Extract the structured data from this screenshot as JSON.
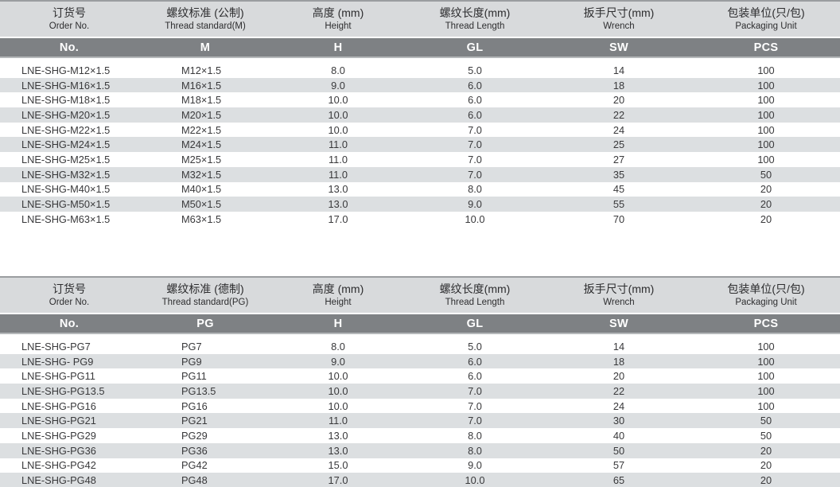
{
  "page": {
    "background": "#ffffff",
    "colors": {
      "top_border": "#9a9da0",
      "header_band_bg": "#d8dadc",
      "code_band_bg": "#7e8184",
      "code_band_text": "#ffffff",
      "stripe_row_bg": "#dcdfe1",
      "data_text": "#39393b"
    }
  },
  "tables": [
    {
      "name": "metric-thread-table",
      "columns": [
        {
          "key": "order_no",
          "zh": "订货号",
          "en": "Order No.",
          "code": "No."
        },
        {
          "key": "thread_standard",
          "zh": "螺纹标准 (公制)",
          "en": "Thread standard(M)",
          "code": "M"
        },
        {
          "key": "height",
          "zh": "高度 (mm)",
          "en": "Height",
          "code": "H"
        },
        {
          "key": "thread_length",
          "zh": "螺纹长度(mm)",
          "en": "Thread Length",
          "code": "GL"
        },
        {
          "key": "wrench",
          "zh": "扳手尺寸(mm)",
          "en": "Wrench",
          "code": "SW"
        },
        {
          "key": "packaging_unit",
          "zh": "包装单位(只/包)",
          "en": "Packaging Unit",
          "code": "PCS"
        }
      ],
      "rows": [
        [
          "LNE-SHG-M12×1.5",
          "M12×1.5",
          "8.0",
          "5.0",
          "14",
          "100"
        ],
        [
          "LNE-SHG-M16×1.5",
          "M16×1.5",
          "9.0",
          "6.0",
          "18",
          "100"
        ],
        [
          "LNE-SHG-M18×1.5",
          "M18×1.5",
          "10.0",
          "6.0",
          "20",
          "100"
        ],
        [
          "LNE-SHG-M20×1.5",
          "M20×1.5",
          "10.0",
          "6.0",
          "22",
          "100"
        ],
        [
          "LNE-SHG-M22×1.5",
          "M22×1.5",
          "10.0",
          "7.0",
          "24",
          "100"
        ],
        [
          "LNE-SHG-M24×1.5",
          "M24×1.5",
          "11.0",
          "7.0",
          "25",
          "100"
        ],
        [
          "LNE-SHG-M25×1.5",
          "M25×1.5",
          "11.0",
          "7.0",
          "27",
          "100"
        ],
        [
          "LNE-SHG-M32×1.5",
          "M32×1.5",
          "11.0",
          "7.0",
          "35",
          "50"
        ],
        [
          "LNE-SHG-M40×1.5",
          "M40×1.5",
          "13.0",
          "8.0",
          "45",
          "20"
        ],
        [
          "LNE-SHG-M50×1.5",
          "M50×1.5",
          "13.0",
          "9.0",
          "55",
          "20"
        ],
        [
          "LNE-SHG-M63×1.5",
          "M63×1.5",
          "17.0",
          "10.0",
          "70",
          "20"
        ]
      ]
    },
    {
      "name": "pg-thread-table",
      "columns": [
        {
          "key": "order_no",
          "zh": "订货号",
          "en": "Order No.",
          "code": "No."
        },
        {
          "key": "thread_standard",
          "zh": "螺纹标准 (德制)",
          "en": "Thread standard(PG)",
          "code": "PG"
        },
        {
          "key": "height",
          "zh": "高度 (mm)",
          "en": "Height",
          "code": "H"
        },
        {
          "key": "thread_length",
          "zh": "螺纹长度(mm)",
          "en": "Thread Length",
          "code": "GL"
        },
        {
          "key": "wrench",
          "zh": "扳手尺寸(mm)",
          "en": "Wrench",
          "code": "SW"
        },
        {
          "key": "packaging_unit",
          "zh": "包装单位(只/包)",
          "en": "Packaging Unit",
          "code": "PCS"
        }
      ],
      "rows": [
        [
          "LNE-SHG-PG7",
          "PG7",
          "8.0",
          "5.0",
          "14",
          "100"
        ],
        [
          "LNE-SHG- PG9",
          "PG9",
          "9.0",
          "6.0",
          "18",
          "100"
        ],
        [
          "LNE-SHG-PG11",
          "PG11",
          "10.0",
          "6.0",
          "20",
          "100"
        ],
        [
          "LNE-SHG-PG13.5",
          "PG13.5",
          "10.0",
          "7.0",
          "22",
          "100"
        ],
        [
          "LNE-SHG-PG16",
          "PG16",
          "10.0",
          "7.0",
          "24",
          "100"
        ],
        [
          "LNE-SHG-PG21",
          "PG21",
          "11.0",
          "7.0",
          "30",
          "50"
        ],
        [
          "LNE-SHG-PG29",
          "PG29",
          "13.0",
          "8.0",
          "40",
          "50"
        ],
        [
          "LNE-SHG-PG36",
          "PG36",
          "13.0",
          "8.0",
          "50",
          "20"
        ],
        [
          "LNE-SHG-PG42",
          "PG42",
          "15.0",
          "9.0",
          "57",
          "20"
        ],
        [
          "LNE-SHG-PG48",
          "PG48",
          "17.0",
          "10.0",
          "65",
          "20"
        ]
      ]
    }
  ]
}
